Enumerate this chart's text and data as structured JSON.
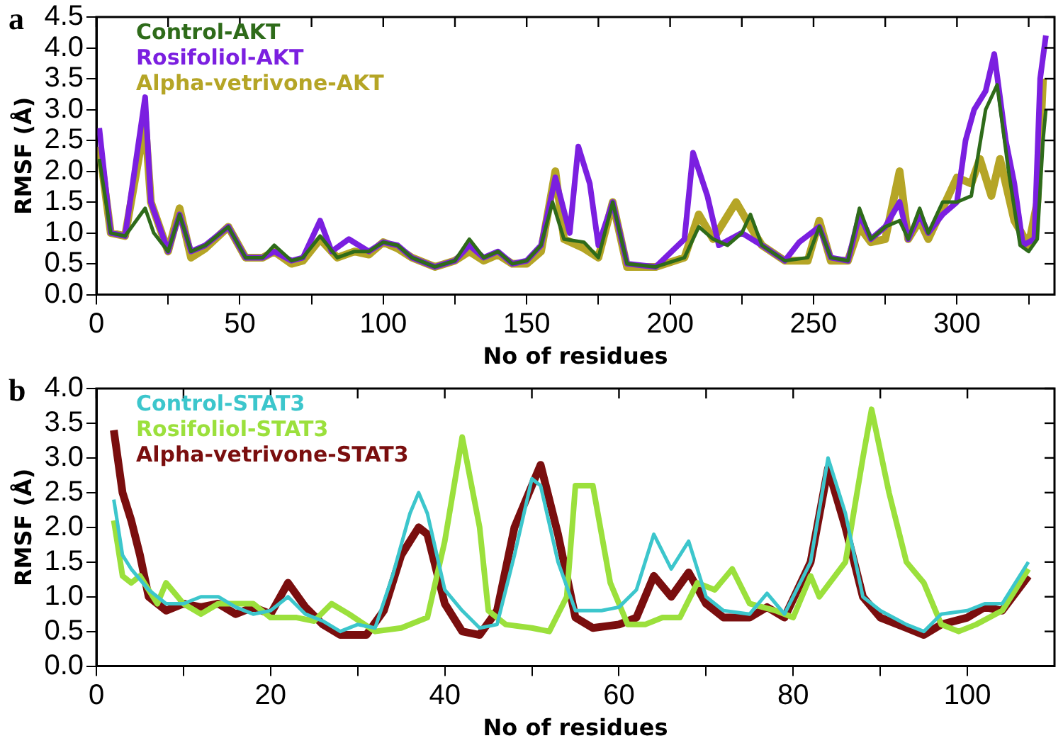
{
  "chart_data": [
    {
      "type": "line",
      "title": "a",
      "xlabel": "No of residues",
      "ylabel": "RMSF (Å)",
      "legend": "top left",
      "grid": false,
      "marker": "none",
      "line_style": "solid",
      "xlim": [
        0,
        334
      ],
      "xticks": [
        0,
        {
          "value": 25,
          "label": null
        },
        50,
        {
          "value": 75,
          "label": null
        },
        100,
        {
          "value": 125,
          "label": null
        },
        150,
        {
          "value": 175,
          "label": null
        },
        200,
        {
          "value": 225,
          "label": null
        },
        250,
        {
          "value": 275,
          "label": null
        },
        300,
        {
          "value": 325,
          "label": null
        }
      ],
      "ylim": [
        0,
        4.5
      ],
      "yticks": [
        {
          "value": 0,
          "label": "0.0"
        },
        0.5,
        {
          "value": 1,
          "label": "1.0"
        },
        1.5,
        {
          "value": 2,
          "label": "2.0"
        },
        2.5,
        {
          "value": 3,
          "label": "3.0"
        },
        3.5,
        {
          "value": 4,
          "label": "4.0"
        },
        4.5
      ],
      "series": [
        {
          "name": "Control-AKT",
          "color": "#2e6b1a",
          "x": [
            1,
            5,
            10,
            17,
            20,
            25,
            29,
            33,
            38,
            46,
            52,
            58,
            62,
            68,
            72,
            78,
            84,
            90,
            95,
            100,
            105,
            110,
            118,
            125,
            130,
            135,
            140,
            145,
            150,
            155,
            159,
            163,
            170,
            175,
            180,
            185,
            195,
            205,
            210,
            215,
            220,
            225,
            228,
            232,
            240,
            248,
            252,
            256,
            262,
            266,
            270,
            275,
            280,
            283,
            287,
            290,
            295,
            300,
            305,
            310,
            314,
            318,
            322,
            325,
            328,
            330,
            331
          ],
          "values": [
            2.2,
            1.0,
            0.95,
            1.4,
            1.0,
            0.7,
            1.3,
            0.7,
            0.8,
            1.1,
            0.6,
            0.6,
            0.8,
            0.55,
            0.6,
            0.95,
            0.6,
            0.7,
            0.7,
            0.85,
            0.8,
            0.6,
            0.45,
            0.55,
            0.9,
            0.6,
            0.7,
            0.5,
            0.55,
            0.8,
            1.5,
            0.9,
            0.85,
            0.6,
            1.5,
            0.5,
            0.45,
            0.6,
            1.1,
            0.9,
            0.8,
            1.0,
            1.3,
            0.8,
            0.55,
            0.6,
            1.1,
            0.6,
            0.55,
            1.4,
            0.9,
            1.1,
            1.2,
            0.9,
            1.4,
            1.0,
            1.5,
            1.5,
            1.6,
            3.0,
            3.4,
            2.0,
            0.8,
            0.7,
            0.9,
            2.5,
            3.0
          ]
        },
        {
          "name": "Rosifoliol-AKT",
          "color": "#7b1fe0",
          "x": [
            1,
            5,
            10,
            17,
            19,
            25,
            29,
            33,
            38,
            46,
            52,
            58,
            62,
            68,
            72,
            78,
            82,
            88,
            95,
            100,
            105,
            110,
            118,
            125,
            130,
            135,
            140,
            145,
            150,
            155,
            160,
            165,
            168,
            172,
            175,
            180,
            185,
            195,
            205,
            208,
            213,
            217,
            225,
            232,
            240,
            245,
            252,
            256,
            262,
            266,
            270,
            275,
            280,
            283,
            287,
            290,
            295,
            300,
            303,
            306,
            310,
            313,
            317,
            320,
            323,
            327,
            329,
            331
          ],
          "values": [
            2.7,
            1.0,
            0.95,
            3.2,
            1.5,
            0.7,
            1.3,
            0.7,
            0.8,
            1.1,
            0.6,
            0.6,
            0.7,
            0.55,
            0.6,
            1.2,
            0.7,
            0.9,
            0.7,
            0.85,
            0.8,
            0.6,
            0.45,
            0.55,
            0.8,
            0.6,
            0.7,
            0.5,
            0.55,
            0.8,
            1.9,
            1.0,
            2.4,
            1.8,
            0.8,
            1.5,
            0.5,
            0.45,
            0.9,
            2.3,
            1.6,
            0.8,
            1.0,
            0.8,
            0.55,
            0.85,
            1.1,
            0.6,
            0.55,
            1.3,
            0.9,
            1.1,
            1.5,
            0.9,
            1.3,
            1.0,
            1.3,
            1.5,
            2.5,
            3.0,
            3.3,
            3.9,
            2.5,
            1.8,
            0.8,
            0.9,
            3.5,
            4.2
          ]
        },
        {
          "name": "Alpha-vetrivone-AKT",
          "color": "#b5a526",
          "x": [
            1,
            5,
            10,
            17,
            19,
            25,
            29,
            33,
            38,
            46,
            52,
            58,
            62,
            68,
            72,
            78,
            84,
            90,
            95,
            100,
            105,
            110,
            118,
            125,
            130,
            135,
            140,
            145,
            150,
            155,
            160,
            163,
            170,
            175,
            180,
            185,
            195,
            205,
            210,
            215,
            223,
            228,
            232,
            240,
            248,
            252,
            256,
            262,
            266,
            270,
            275,
            280,
            283,
            287,
            290,
            295,
            300,
            305,
            308,
            312,
            315,
            320,
            325,
            328,
            330
          ],
          "values": [
            2.4,
            1.0,
            0.95,
            2.8,
            1.5,
            0.7,
            1.4,
            0.6,
            0.75,
            1.1,
            0.6,
            0.6,
            0.7,
            0.5,
            0.55,
            0.9,
            0.6,
            0.7,
            0.65,
            0.85,
            0.75,
            0.6,
            0.45,
            0.55,
            0.7,
            0.55,
            0.65,
            0.5,
            0.5,
            0.7,
            2.0,
            0.9,
            0.75,
            0.6,
            1.5,
            0.45,
            0.45,
            0.6,
            1.3,
            0.9,
            1.5,
            1.1,
            0.8,
            0.55,
            0.55,
            1.2,
            0.55,
            0.55,
            1.1,
            0.85,
            0.9,
            2.0,
            0.9,
            1.2,
            0.9,
            1.4,
            1.9,
            1.8,
            2.2,
            1.6,
            2.2,
            1.2,
            0.8,
            1.5,
            3.5
          ]
        }
      ]
    },
    {
      "type": "line",
      "title": "b",
      "xlabel": "No of residues",
      "ylabel": "RMSF (Å)",
      "legend": "top left",
      "grid": false,
      "marker": "none",
      "line_style": "solid",
      "xlim": [
        0,
        110
      ],
      "xticks": [
        0,
        {
          "value": 10,
          "label": null
        },
        20,
        {
          "value": 30,
          "label": null
        },
        40,
        {
          "value": 50,
          "label": null
        },
        60,
        {
          "value": 70,
          "label": null
        },
        80,
        {
          "value": 90,
          "label": null
        },
        100
      ],
      "ylim": [
        0,
        4
      ],
      "yticks": [
        {
          "value": 0,
          "label": "0.0"
        },
        0.5,
        {
          "value": 1,
          "label": "1.0"
        },
        1.5,
        {
          "value": 2,
          "label": "2.0"
        },
        2.5,
        {
          "value": 3,
          "label": "3.0"
        },
        3.5,
        {
          "value": 4,
          "label": "4.0"
        }
      ],
      "series": [
        {
          "name": "Control-STAT3",
          "color": "#3cc6cc",
          "x": [
            2,
            3,
            4,
            6,
            8,
            10,
            12,
            14,
            16,
            18,
            20,
            22,
            24,
            26,
            28,
            30,
            32,
            34,
            36,
            37,
            38,
            40,
            42,
            44,
            46,
            48,
            50,
            51,
            53,
            55,
            58,
            60,
            62,
            64,
            66,
            68,
            70,
            72,
            75,
            77,
            79,
            82,
            84,
            86,
            88,
            90,
            93,
            95,
            97,
            100,
            102,
            104,
            107
          ],
          "values": [
            2.4,
            1.6,
            1.4,
            1.1,
            0.9,
            0.9,
            1.0,
            1.0,
            0.85,
            0.75,
            0.8,
            1.0,
            0.75,
            0.65,
            0.5,
            0.6,
            0.55,
            1.3,
            2.2,
            2.5,
            2.2,
            1.1,
            0.8,
            0.55,
            0.6,
            1.6,
            2.7,
            2.6,
            1.5,
            0.8,
            0.8,
            0.85,
            1.1,
            1.9,
            1.4,
            1.8,
            1.0,
            0.8,
            0.75,
            1.05,
            0.75,
            1.5,
            3.0,
            2.2,
            1.0,
            0.8,
            0.6,
            0.5,
            0.75,
            0.8,
            0.9,
            0.9,
            1.5
          ]
        },
        {
          "name": "Rosifoliol-STAT3",
          "color": "#9be03c",
          "x": [
            2,
            3,
            4,
            5,
            7,
            8,
            10,
            12,
            14,
            16,
            18,
            20,
            23,
            25,
            27,
            29,
            32,
            35,
            38,
            40,
            42,
            44,
            45,
            47,
            50,
            52,
            54,
            55,
            57,
            59,
            61,
            63,
            65,
            67,
            69,
            71,
            73,
            75,
            78,
            80,
            82,
            83,
            86,
            88,
            89,
            91,
            93,
            95,
            97,
            99,
            101,
            104,
            107
          ],
          "values": [
            2.1,
            1.3,
            1.2,
            1.3,
            0.9,
            1.2,
            0.9,
            0.75,
            0.9,
            0.9,
            0.9,
            0.7,
            0.7,
            0.65,
            0.9,
            0.75,
            0.5,
            0.55,
            0.7,
            1.8,
            3.3,
            2.0,
            0.8,
            0.6,
            0.55,
            0.5,
            1.0,
            2.6,
            2.6,
            1.2,
            0.6,
            0.6,
            0.7,
            0.7,
            1.2,
            1.1,
            1.4,
            0.9,
            0.8,
            0.7,
            1.3,
            1.0,
            1.5,
            3.0,
            3.7,
            2.5,
            1.5,
            1.2,
            0.6,
            0.5,
            0.6,
            0.8,
            1.4
          ]
        },
        {
          "name": "Alpha-vetrivone-STAT3",
          "color": "#7a0e0e",
          "x": [
            2,
            3,
            4,
            5,
            6,
            8,
            10,
            12,
            14,
            16,
            18,
            20,
            22,
            24,
            26,
            28,
            31,
            33,
            35,
            37,
            38,
            40,
            42,
            44,
            46,
            48,
            51,
            53,
            55,
            57,
            60,
            62,
            64,
            66,
            68,
            70,
            72,
            75,
            77,
            79,
            82,
            84,
            86,
            88,
            90,
            93,
            95,
            97,
            100,
            102,
            104,
            107
          ],
          "values": [
            3.4,
            2.5,
            2.1,
            1.6,
            1.0,
            0.8,
            0.9,
            0.85,
            0.9,
            0.75,
            0.85,
            0.75,
            1.2,
            0.85,
            0.6,
            0.45,
            0.45,
            0.8,
            1.6,
            2.0,
            1.9,
            0.9,
            0.5,
            0.45,
            0.8,
            2.0,
            2.9,
            1.9,
            0.7,
            0.55,
            0.6,
            0.7,
            1.3,
            1.0,
            1.35,
            0.9,
            0.7,
            0.7,
            0.85,
            0.7,
            1.5,
            2.85,
            2.0,
            1.0,
            0.7,
            0.55,
            0.45,
            0.6,
            0.7,
            0.85,
            0.8,
            1.3
          ]
        }
      ]
    }
  ]
}
